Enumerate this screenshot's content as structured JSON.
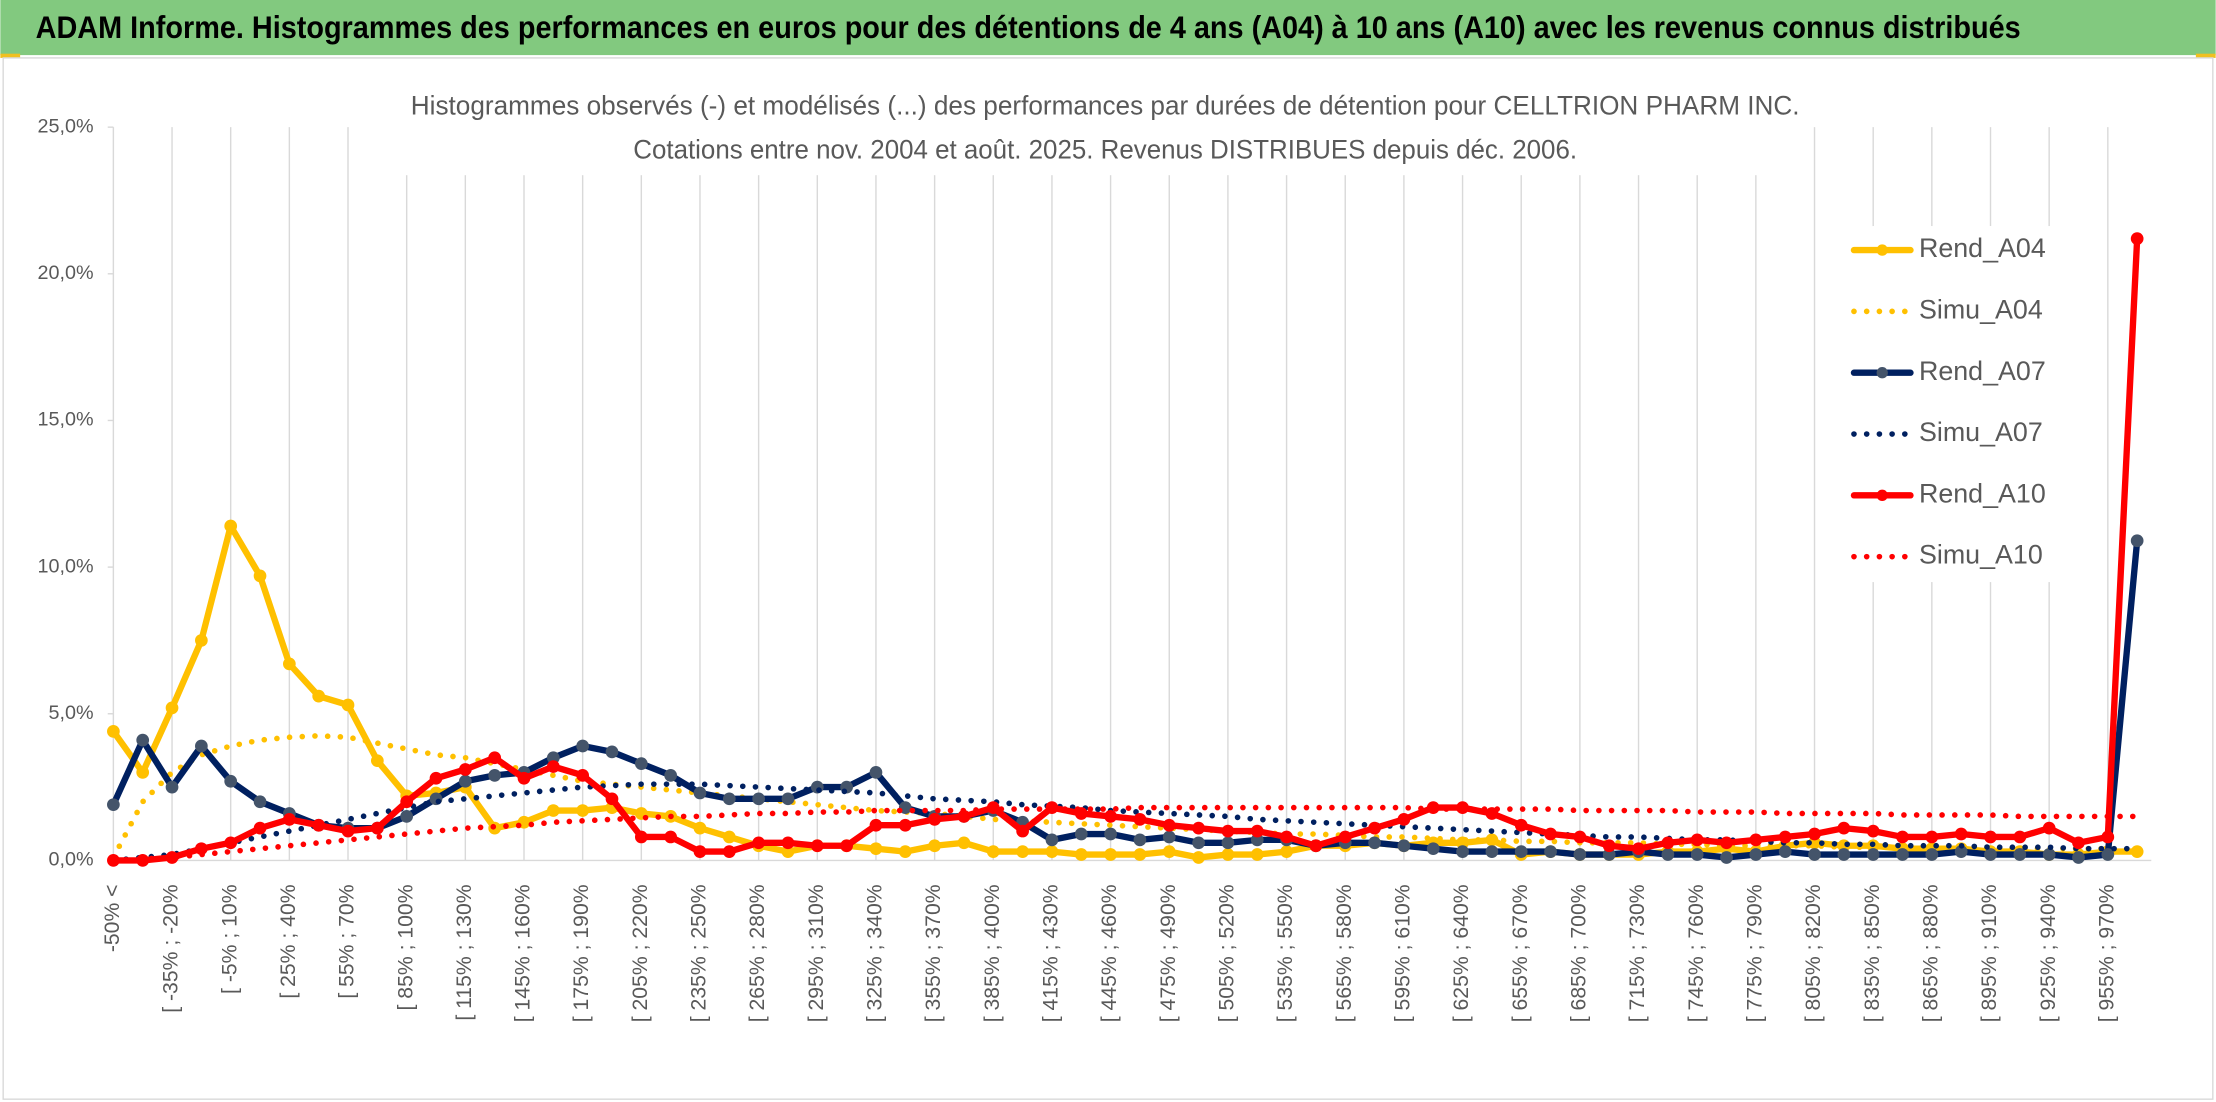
{
  "header": {
    "title": "ADAM Informe. Histogrammes des performances en euros pour des détentions de 4 ans (A04) à 10 ans (A10) avec les revenus connus distribués"
  },
  "chart_data": {
    "type": "line",
    "title": "Histogrammes observés (-) et modélisés (...) des performances par durées de détention pour CELLTRION PHARM INC.",
    "subtitle": "Cotations entre nov. 2004 et août. 2025. Revenus DISTRIBUES depuis déc. 2006.",
    "categories": [
      "-50% <",
      null,
      "[ -35% ; -20%",
      null,
      "[ -5% ; 10%",
      null,
      "[ 25% ; 40%",
      null,
      "[ 55% ; 70%",
      null,
      "[ 85% ; 100%",
      null,
      "[ 115% ; 130%",
      null,
      "[ 145% ; 160%",
      null,
      "[ 175% ; 190%",
      null,
      "[ 205% ; 220%",
      null,
      "[ 235% ; 250%",
      null,
      "[ 265% ; 280%",
      null,
      "[ 295% ; 310%",
      null,
      "[ 325% ; 340%",
      null,
      "[ 355% ; 370%",
      null,
      "[ 385% ; 400%",
      null,
      "[ 415% ; 430%",
      null,
      "[ 445% ; 460%",
      null,
      "[ 475% ; 490%",
      null,
      "[ 505% ; 520%",
      null,
      "[ 535% ; 550%",
      null,
      "[ 565% ; 580%",
      null,
      "[ 595% ; 610%",
      null,
      "[ 625% ; 640%",
      null,
      "[ 655% ; 670%",
      null,
      "[ 685% ; 700%",
      null,
      "[ 715% ; 730%",
      null,
      "[ 745% ; 760%",
      null,
      "[ 775% ; 790%",
      null,
      "[ 805% ; 820%",
      null,
      "[ 835% ; 850%",
      null,
      "[ 865% ; 880%",
      null,
      "[ 895% ; 910%",
      null,
      "[ 925% ; 940%",
      null,
      "[ 955% ; 970%",
      null
    ],
    "ylim": [
      0,
      25
    ],
    "yticks": [
      {
        "value": 0,
        "label": "0,0%"
      },
      {
        "value": 5,
        "label": "5,0%"
      },
      {
        "value": 10,
        "label": "10,0%"
      },
      {
        "value": 15,
        "label": "15,0%"
      },
      {
        "value": 20,
        "label": "20,0%"
      },
      {
        "value": 25,
        "label": "25,0%"
      }
    ],
    "xgrid": true,
    "legend": "right",
    "series": [
      {
        "name": "Rend_A04",
        "color": "#ffc000",
        "style": "solid",
        "values": [
          4.4,
          3.0,
          5.2,
          7.5,
          11.4,
          9.7,
          6.7,
          5.6,
          5.3,
          3.4,
          2.2,
          2.3,
          2.5,
          1.1,
          1.3,
          1.7,
          1.7,
          1.8,
          1.6,
          1.5,
          1.1,
          0.8,
          0.5,
          0.3,
          0.5,
          0.5,
          0.4,
          0.3,
          0.5,
          0.6,
          0.3,
          0.3,
          0.3,
          0.2,
          0.2,
          0.2,
          0.3,
          0.1,
          0.2,
          0.2,
          0.3,
          0.5,
          0.5,
          0.6,
          0.5,
          0.6,
          0.6,
          0.7,
          0.2,
          0.3,
          0.2,
          0.2,
          0.2,
          0.3,
          0.3,
          0.4,
          0.3,
          0.5,
          0.6,
          0.5,
          0.5,
          0.4,
          0.4,
          0.4,
          0.3,
          0.3,
          0.2,
          0.2,
          0.3,
          0.3
        ]
      },
      {
        "name": "Simu_A04",
        "color": "#ffc000",
        "style": "dotted",
        "values": [
          0.1,
          2.0,
          3.0,
          3.6,
          3.9,
          4.1,
          4.2,
          4.25,
          4.2,
          4.0,
          3.8,
          3.6,
          3.5,
          3.3,
          3.1,
          2.9,
          2.7,
          2.6,
          2.5,
          2.4,
          2.3,
          2.2,
          2.1,
          2.0,
          1.9,
          1.8,
          1.7,
          1.65,
          1.6,
          1.5,
          1.4,
          1.35,
          1.3,
          1.25,
          1.2,
          1.15,
          1.1,
          1.05,
          1.0,
          0.95,
          0.9,
          0.9,
          0.85,
          0.8,
          0.8,
          0.75,
          0.7,
          0.7,
          0.65,
          0.65,
          0.6,
          0.6,
          0.6,
          0.55,
          0.55,
          0.5,
          0.5,
          0.5,
          0.5,
          0.45,
          0.45,
          0.45,
          0.45,
          0.4,
          0.4,
          0.4,
          0.4,
          0.4,
          0.4,
          0.35
        ]
      },
      {
        "name": "Rend_A07",
        "color": "#002060",
        "marker": "#44546a",
        "style": "solid",
        "values": [
          1.9,
          4.1,
          2.5,
          3.9,
          2.7,
          2.0,
          1.6,
          1.2,
          1.1,
          1.1,
          1.5,
          2.1,
          2.7,
          2.9,
          3.0,
          3.5,
          3.9,
          3.7,
          3.3,
          2.9,
          2.3,
          2.1,
          2.1,
          2.1,
          2.5,
          2.5,
          3.0,
          1.8,
          1.5,
          1.5,
          1.7,
          1.3,
          0.7,
          0.9,
          0.9,
          0.7,
          0.8,
          0.6,
          0.6,
          0.7,
          0.7,
          0.5,
          0.6,
          0.6,
          0.5,
          0.4,
          0.3,
          0.3,
          0.3,
          0.3,
          0.2,
          0.2,
          0.3,
          0.2,
          0.2,
          0.1,
          0.2,
          0.3,
          0.2,
          0.2,
          0.2,
          0.2,
          0.2,
          0.3,
          0.2,
          0.2,
          0.2,
          0.1,
          0.2,
          10.9
        ]
      },
      {
        "name": "Simu_A07",
        "color": "#002060",
        "style": "dotted",
        "values": [
          0.0,
          0.1,
          0.2,
          0.4,
          0.6,
          0.8,
          1.0,
          1.2,
          1.4,
          1.6,
          1.8,
          2.0,
          2.1,
          2.2,
          2.3,
          2.4,
          2.5,
          2.55,
          2.6,
          2.6,
          2.6,
          2.55,
          2.5,
          2.45,
          2.4,
          2.35,
          2.3,
          2.2,
          2.1,
          2.05,
          2.0,
          1.9,
          1.85,
          1.8,
          1.7,
          1.65,
          1.6,
          1.55,
          1.5,
          1.4,
          1.35,
          1.3,
          1.25,
          1.2,
          1.15,
          1.1,
          1.05,
          1.0,
          0.95,
          0.9,
          0.85,
          0.8,
          0.8,
          0.75,
          0.7,
          0.7,
          0.65,
          0.6,
          0.6,
          0.55,
          0.55,
          0.5,
          0.5,
          0.5,
          0.45,
          0.45,
          0.45,
          0.4,
          0.4,
          0.4
        ]
      },
      {
        "name": "Rend_A10",
        "color": "#ff0000",
        "style": "solid",
        "values": [
          0.0,
          0.0,
          0.1,
          0.4,
          0.6,
          1.1,
          1.4,
          1.2,
          1.0,
          1.1,
          2.0,
          2.8,
          3.1,
          3.5,
          2.8,
          3.2,
          2.9,
          2.1,
          0.8,
          0.8,
          0.3,
          0.3,
          0.6,
          0.6,
          0.5,
          0.5,
          1.2,
          1.2,
          1.4,
          1.5,
          1.8,
          1.0,
          1.8,
          1.6,
          1.5,
          1.4,
          1.2,
          1.1,
          1.0,
          1.0,
          0.8,
          0.5,
          0.8,
          1.1,
          1.4,
          1.8,
          1.8,
          1.6,
          1.2,
          0.9,
          0.8,
          0.5,
          0.4,
          0.6,
          0.7,
          0.6,
          0.7,
          0.8,
          0.9,
          1.1,
          1.0,
          0.8,
          0.8,
          0.9,
          0.8,
          0.8,
          1.1,
          0.6,
          0.8,
          21.2
        ]
      },
      {
        "name": "Simu_A10",
        "color": "#ff0000",
        "style": "dotted",
        "values": [
          0.0,
          0.05,
          0.1,
          0.2,
          0.3,
          0.4,
          0.5,
          0.6,
          0.7,
          0.8,
          0.9,
          1.0,
          1.1,
          1.15,
          1.2,
          1.3,
          1.35,
          1.4,
          1.45,
          1.5,
          1.5,
          1.55,
          1.6,
          1.6,
          1.65,
          1.65,
          1.7,
          1.7,
          1.7,
          1.7,
          1.75,
          1.75,
          1.75,
          1.75,
          1.75,
          1.8,
          1.8,
          1.8,
          1.8,
          1.8,
          1.8,
          1.8,
          1.8,
          1.8,
          1.8,
          1.75,
          1.75,
          1.75,
          1.75,
          1.75,
          1.7,
          1.7,
          1.7,
          1.7,
          1.65,
          1.65,
          1.65,
          1.6,
          1.6,
          1.6,
          1.6,
          1.55,
          1.55,
          1.55,
          1.55,
          1.5,
          1.5,
          1.5,
          1.5,
          1.5
        ]
      }
    ]
  }
}
